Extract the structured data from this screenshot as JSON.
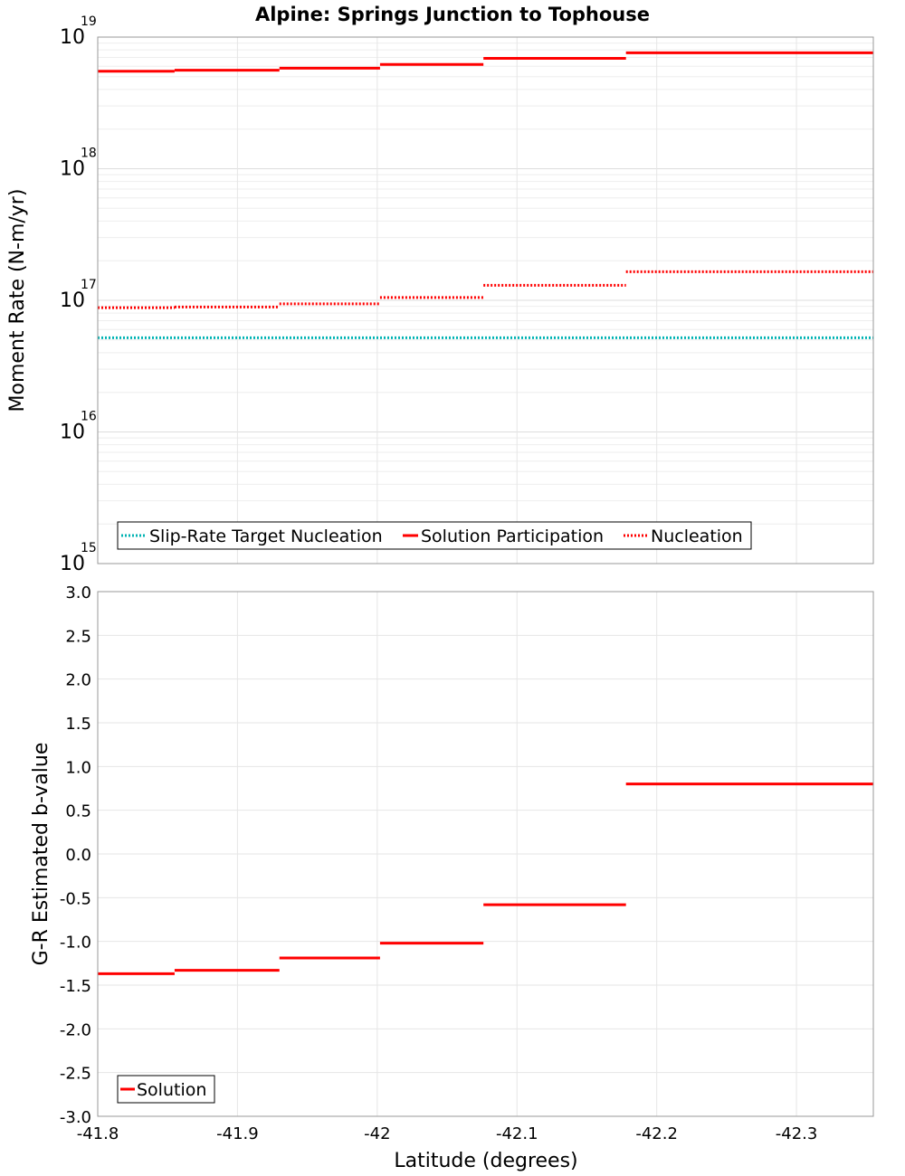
{
  "chart_data": [
    {
      "type": "line",
      "title": "Alpine: Springs Junction to Tophouse",
      "xlabel": "Latitude (degrees)",
      "ylabel": "Moment Rate (N-m/yr)",
      "yscale": "log",
      "xlim": [
        -41.8,
        -42.355
      ],
      "ylim": [
        1000000000000000.0,
        1e+19
      ],
      "x_ticks": [
        "-41.8",
        "-41.9",
        "-42",
        "-42.1",
        "-42.2",
        "-42.3"
      ],
      "y_ticks": [
        {
          "base": "10",
          "exp": "15"
        },
        {
          "base": "10",
          "exp": "16"
        },
        {
          "base": "10",
          "exp": "17"
        },
        {
          "base": "10",
          "exp": "18"
        },
        {
          "base": "10",
          "exp": "19"
        }
      ],
      "grid": true,
      "legend_position": "bottom-left",
      "series": [
        {
          "name": "Slip-Rate Target Nucleation",
          "color": "#00b3b3",
          "style": "dotted",
          "segments": [
            {
              "x0": -41.8,
              "x1": -42.355,
              "y": 5.2e+16
            }
          ]
        },
        {
          "name": "Solution Participation",
          "color": "#ff0000",
          "style": "solid",
          "segments": [
            {
              "x0": -41.8,
              "x1": -41.855,
              "y": 5.5e+18
            },
            {
              "x0": -41.855,
              "x1": -41.93,
              "y": 5.6e+18
            },
            {
              "x0": -41.93,
              "x1": -42.002,
              "y": 5.8e+18
            },
            {
              "x0": -42.002,
              "x1": -42.076,
              "y": 6.2e+18
            },
            {
              "x0": -42.076,
              "x1": -42.178,
              "y": 6.9e+18
            },
            {
              "x0": -42.178,
              "x1": -42.355,
              "y": 7.6e+18
            }
          ]
        },
        {
          "name": "Nucleation",
          "color": "#ff0000",
          "style": "dotted",
          "segments": [
            {
              "x0": -41.8,
              "x1": -41.855,
              "y": 8.8e+16
            },
            {
              "x0": -41.855,
              "x1": -41.93,
              "y": 8.9e+16
            },
            {
              "x0": -41.93,
              "x1": -42.002,
              "y": 9.4e+16
            },
            {
              "x0": -42.002,
              "x1": -42.076,
              "y": 1.05e+17
            },
            {
              "x0": -42.076,
              "x1": -42.178,
              "y": 1.3e+17
            },
            {
              "x0": -42.178,
              "x1": -42.355,
              "y": 1.65e+17
            }
          ]
        }
      ]
    },
    {
      "type": "line",
      "xlabel": "Latitude (degrees)",
      "ylabel": "G-R Estimated b-value",
      "xlim": [
        -41.8,
        -42.355
      ],
      "ylim": [
        -3.0,
        3.0
      ],
      "x_ticks": [
        "-41.8",
        "-41.9",
        "-42",
        "-42.1",
        "-42.2",
        "-42.3"
      ],
      "y_ticks": [
        "-3.0",
        "-2.5",
        "-2.0",
        "-1.5",
        "-1.0",
        "-0.5",
        "0.0",
        "0.5",
        "1.0",
        "1.5",
        "2.0",
        "2.5",
        "3.0"
      ],
      "grid": true,
      "legend_position": "bottom-left",
      "series": [
        {
          "name": "Solution",
          "color": "#ff0000",
          "style": "solid",
          "segments": [
            {
              "x0": -41.8,
              "x1": -41.855,
              "y": -1.37
            },
            {
              "x0": -41.855,
              "x1": -41.93,
              "y": -1.33
            },
            {
              "x0": -41.93,
              "x1": -42.002,
              "y": -1.19
            },
            {
              "x0": -42.002,
              "x1": -42.076,
              "y": -1.02
            },
            {
              "x0": -42.076,
              "x1": -42.178,
              "y": -0.58
            },
            {
              "x0": -42.178,
              "x1": -42.355,
              "y": 0.8
            }
          ]
        }
      ]
    }
  ]
}
